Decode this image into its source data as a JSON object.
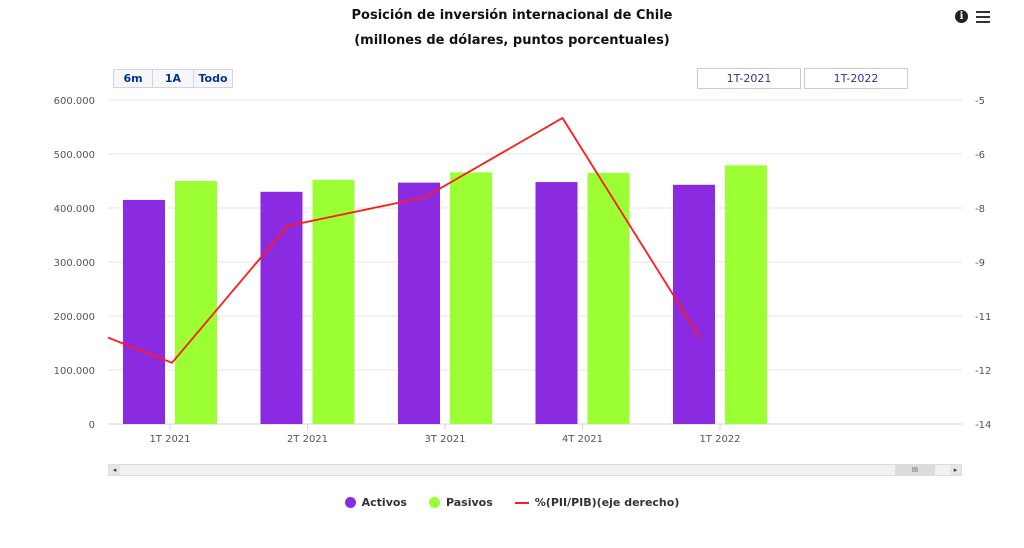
{
  "header": {
    "title_line1": "Posición de inversión internacional de Chile",
    "title_line2": "(millones de dólares, puntos porcentuales)",
    "info_icon_glyph": "i"
  },
  "range_selector": {
    "buttons": [
      "6m",
      "1A",
      "Todo"
    ],
    "from": "1T-2021",
    "to": "1T-2022"
  },
  "scrollbar": {
    "left_arrow": "◂",
    "right_arrow": "▸",
    "thumb_grip": "III"
  },
  "colors": {
    "activos": "#8a2be2",
    "pasivos": "#9cff33",
    "line": "#ff1a1a",
    "grid": "#e6e6e6"
  },
  "chart_data": {
    "type": "bar",
    "title": "Posición de inversión internacional de Chile",
    "subtitle": "(millones de dólares, puntos porcentuales)",
    "categories": [
      "1T 2021",
      "2T 2021",
      "3T 2021",
      "4T 2021",
      "1T 2022"
    ],
    "y_left": {
      "ticks": [
        "0",
        "100.000",
        "200.000",
        "300.000",
        "400.000",
        "500.000",
        "600.000"
      ],
      "ylim": [
        0,
        600000
      ]
    },
    "y_right": {
      "ticks": [
        "-14",
        "-12",
        "-11",
        "-9",
        "-8",
        "-6",
        "-5"
      ],
      "ylim": [
        -14,
        -5
      ]
    },
    "series": [
      {
        "name": "Activos",
        "type": "bar",
        "values": [
          415000,
          430000,
          447000,
          448000,
          443000
        ]
      },
      {
        "name": "Pasivos",
        "type": "bar",
        "values": [
          450000,
          452000,
          466000,
          465000,
          479000
        ]
      },
      {
        "name": "%(PII/PIB)(eje derecho)",
        "type": "line",
        "axis": "right",
        "values": [
          -12.3,
          -8.5,
          -7.7,
          -5.5,
          -11.6
        ],
        "leading_value": -11.6
      }
    ],
    "legend": "bottom"
  }
}
